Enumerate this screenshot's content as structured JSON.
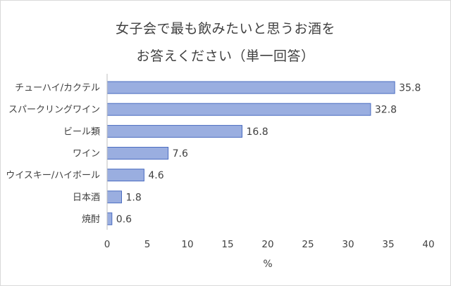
{
  "chart_data": {
    "type": "bar",
    "orientation": "horizontal",
    "title_lines": [
      "女子会で最も飲みたいと思うお酒を",
      "お答えください（単一回答）"
    ],
    "categories": [
      "チューハイ/カクテル",
      "スパークリングワイン",
      "ビール類",
      "ワイン",
      "ウイスキー/ハイボール",
      "日本酒",
      "焼酎"
    ],
    "values": [
      35.8,
      32.8,
      16.8,
      7.6,
      4.6,
      1.8,
      0.6
    ],
    "value_labels": [
      "35.8",
      "32.8",
      "16.8",
      "7.6",
      "4.6",
      "1.8",
      "0.6"
    ],
    "xlabel": "%",
    "xlim": [
      0,
      40
    ],
    "x_ticks": [
      "0",
      "5",
      "10",
      "15",
      "20",
      "25",
      "30",
      "35",
      "40"
    ],
    "grid": false,
    "legend": "none",
    "colors": {
      "bar_fill": "#9aaee0",
      "bar_stroke": "#4a6cc0",
      "axis": "#bfbfbf"
    }
  }
}
